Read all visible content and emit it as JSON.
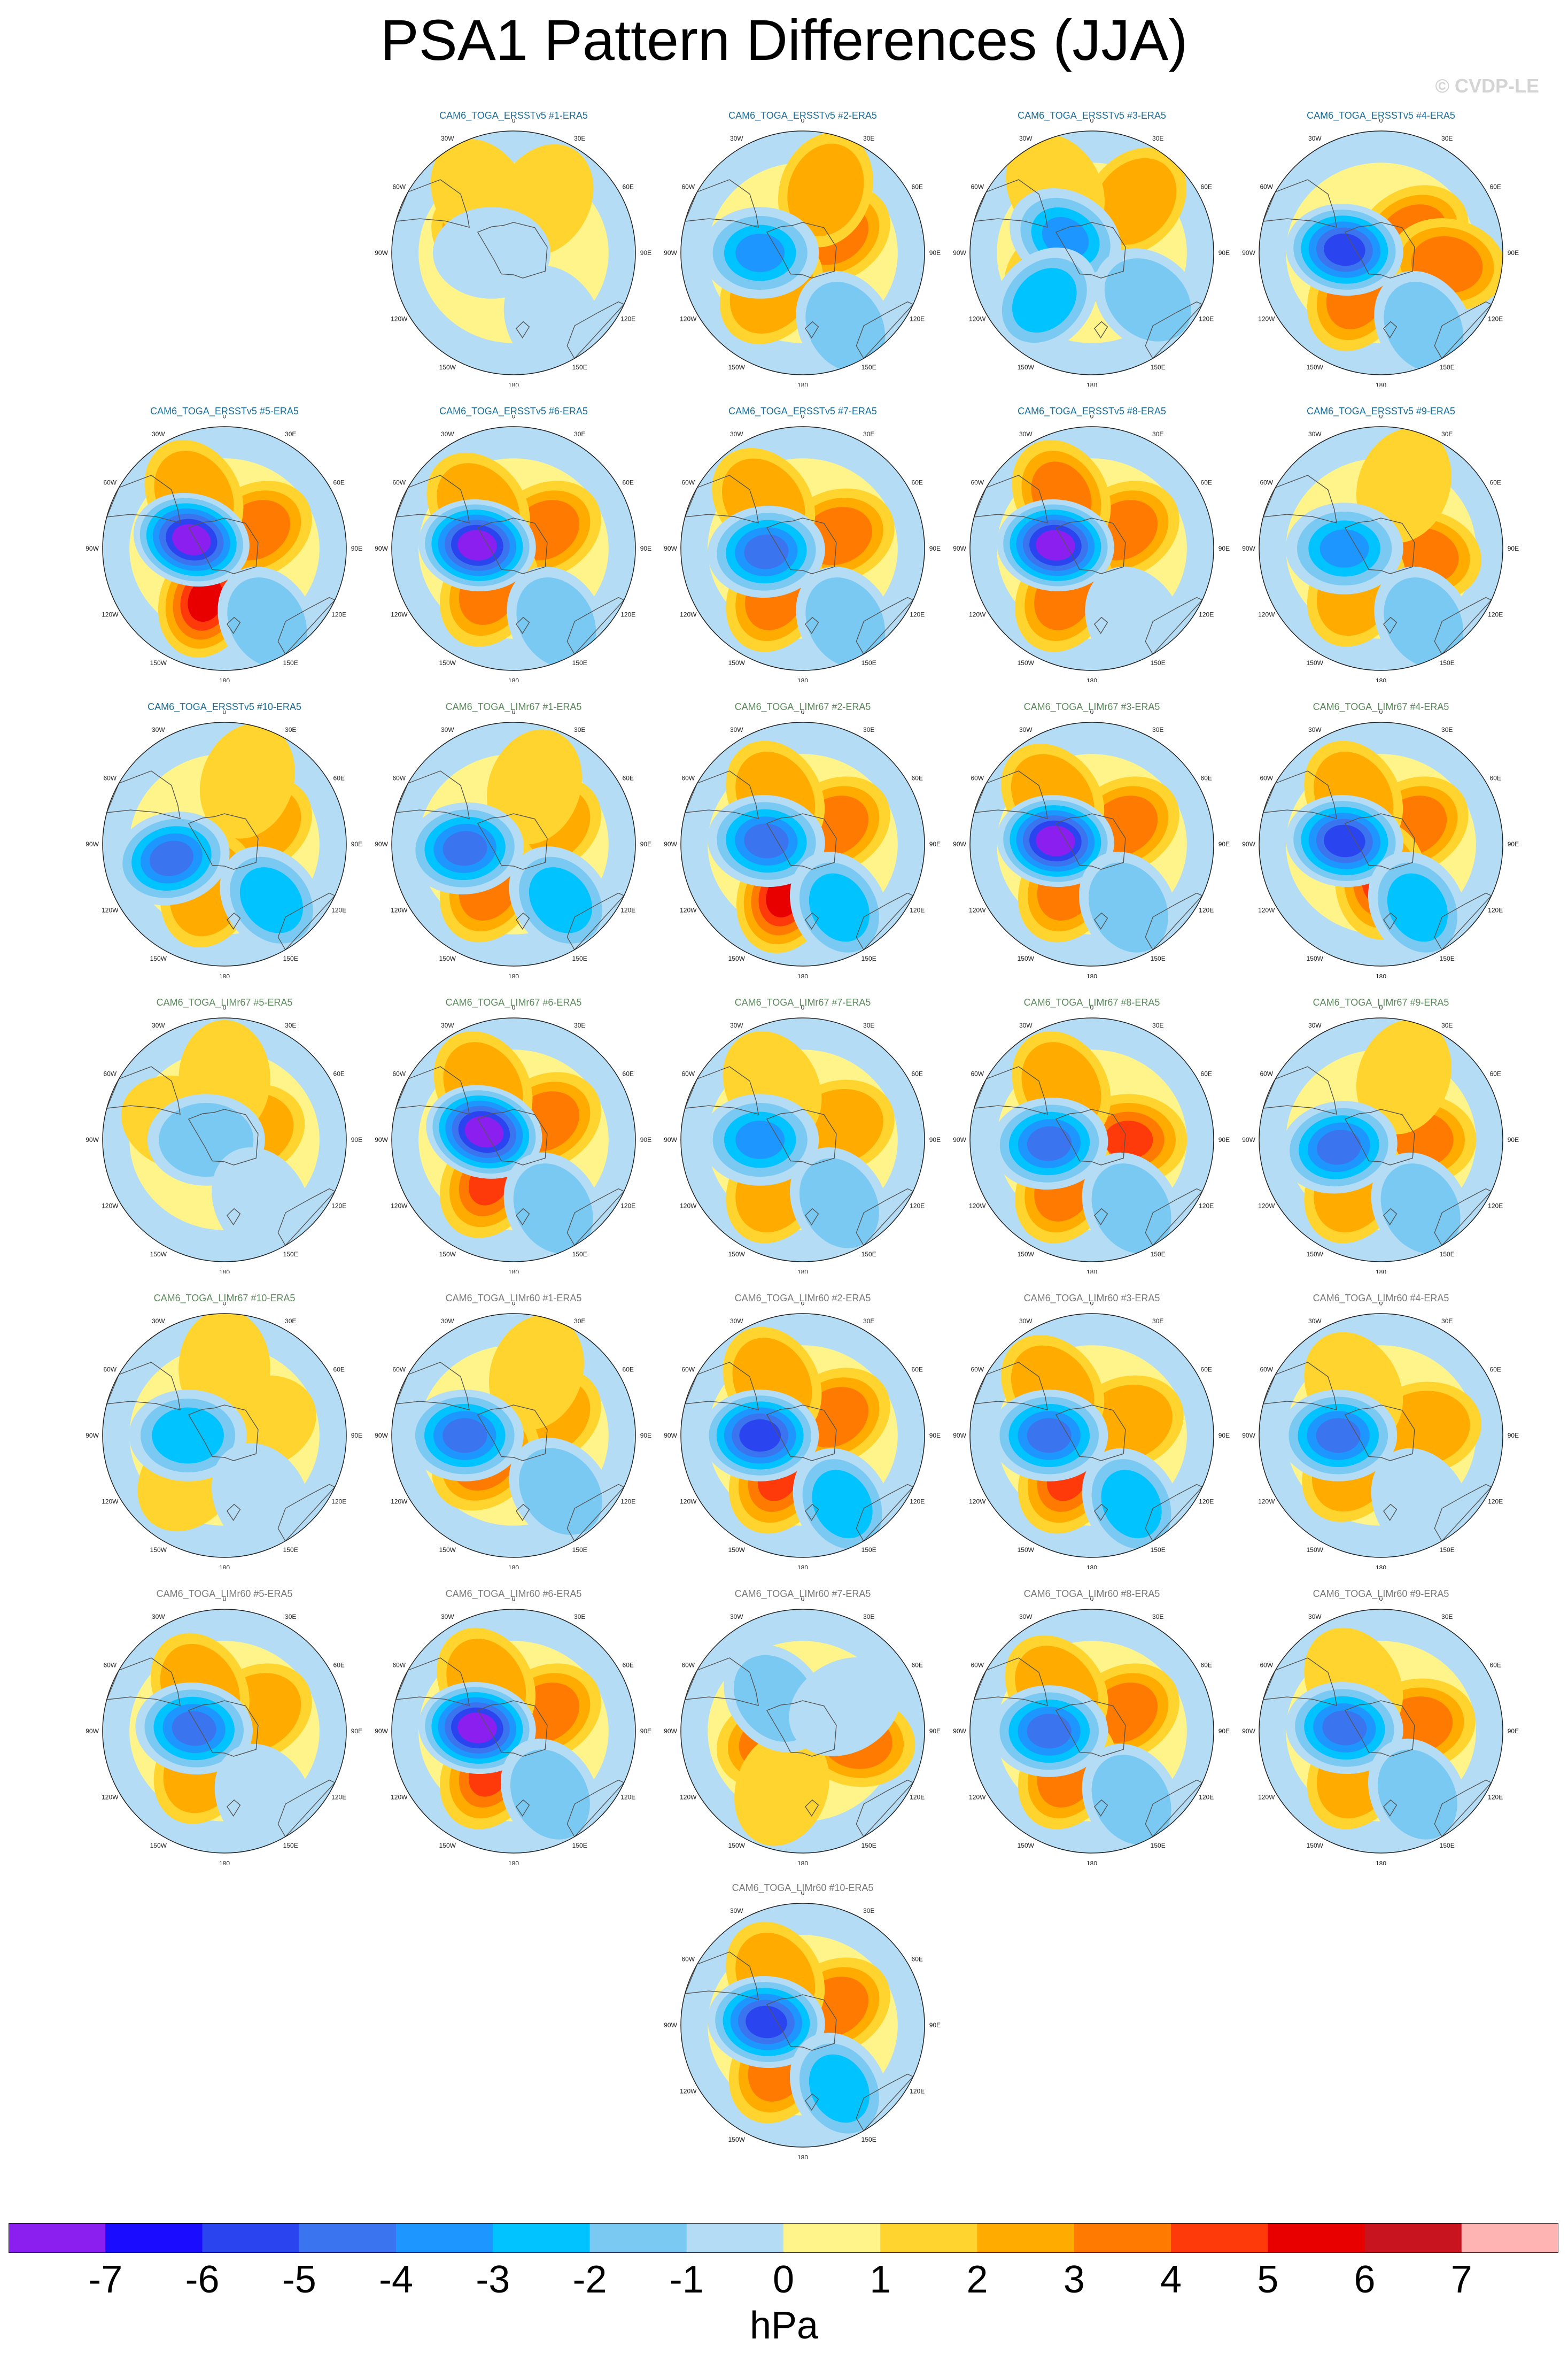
{
  "title": "PSA1 Pattern Differences (JJA)",
  "watermark": "© CVDP-LE",
  "units": "hPa",
  "lon_labels": [
    "0",
    "30E",
    "60E",
    "90E",
    "120E",
    "150E",
    "180",
    "150W",
    "120W",
    "90W",
    "60W",
    "30W"
  ],
  "colorbar": {
    "tick_labels": [
      "-7",
      "-6",
      "-5",
      "-4",
      "-3",
      "-2",
      "-1",
      "0",
      "1",
      "2",
      "3",
      "4",
      "5",
      "6",
      "7"
    ],
    "colors": [
      "#8a1ff0",
      "#1a0dff",
      "#2a44f0",
      "#3a74ee",
      "#1e96ff",
      "#00c3ff",
      "#7ac9f2",
      "#b4dcf4",
      "#fff48a",
      "#ffd42e",
      "#ffab00",
      "#ff7a00",
      "#ff3a0a",
      "#e80000",
      "#c8141e",
      "#ffb4b4"
    ]
  },
  "map_palette": {
    "ocean_positive": "#fff48a",
    "ocean_negative": "#b4dcf4",
    "coast": "#555555"
  },
  "panels": [
    {
      "title": "CAM6_TOGA_ERSSTv5 #1-ERA5",
      "group": "ersst",
      "lows": [
        {
          "ang": 270,
          "r": 0.18,
          "v": 1
        },
        {
          "ang": 150,
          "r": 0.65,
          "v": 1
        }
      ],
      "highs": [
        {
          "ang": 300,
          "r": 0.25,
          "v": 2
        },
        {
          "ang": 330,
          "r": 0.55,
          "v": 1
        },
        {
          "ang": 30,
          "r": 0.5,
          "v": 1
        }
      ]
    },
    {
      "title": "CAM6_TOGA_ERSSTv5 #2-ERA5",
      "group": "ersst",
      "lows": [
        {
          "ang": 270,
          "r": 0.35,
          "v": 4
        },
        {
          "ang": 150,
          "r": 0.7,
          "v": 2
        }
      ],
      "highs": [
        {
          "ang": 60,
          "r": 0.3,
          "v": 3
        },
        {
          "ang": 220,
          "r": 0.4,
          "v": 2
        },
        {
          "ang": 20,
          "r": 0.55,
          "v": 2
        }
      ]
    },
    {
      "title": "CAM6_TOGA_ERSSTv5 #3-ERA5",
      "group": "ersst",
      "lows": [
        {
          "ang": 300,
          "r": 0.25,
          "v": 4
        },
        {
          "ang": 225,
          "r": 0.55,
          "v": 3
        },
        {
          "ang": 130,
          "r": 0.6,
          "v": 2
        }
      ],
      "highs": [
        {
          "ang": 240,
          "r": 0.3,
          "v": 3
        },
        {
          "ang": 40,
          "r": 0.55,
          "v": 2
        },
        {
          "ang": 330,
          "r": 0.6,
          "v": 1
        }
      ]
    },
    {
      "title": "CAM6_TOGA_ERSSTv5 #4-ERA5",
      "group": "ersst",
      "lows": [
        {
          "ang": 275,
          "r": 0.3,
          "v": 6
        },
        {
          "ang": 150,
          "r": 0.7,
          "v": 2
        }
      ],
      "highs": [
        {
          "ang": 60,
          "r": 0.3,
          "v": 3
        },
        {
          "ang": 210,
          "r": 0.4,
          "v": 3
        },
        {
          "ang": 100,
          "r": 0.55,
          "v": 3
        }
      ]
    },
    {
      "title": "CAM6_TOGA_ERSSTv5 #5-ERA5",
      "group": "ersst",
      "lows": [
        {
          "ang": 285,
          "r": 0.28,
          "v": 7
        },
        {
          "ang": 150,
          "r": 0.7,
          "v": 2
        }
      ],
      "highs": [
        {
          "ang": 200,
          "r": 0.45,
          "v": 5
        },
        {
          "ang": 60,
          "r": 0.3,
          "v": 3
        },
        {
          "ang": 330,
          "r": 0.5,
          "v": 2
        }
      ]
    },
    {
      "title": "CAM6_TOGA_ERSSTv5 #6-ERA5",
      "group": "ersst",
      "lows": [
        {
          "ang": 275,
          "r": 0.3,
          "v": 7
        },
        {
          "ang": 150,
          "r": 0.7,
          "v": 2
        }
      ],
      "highs": [
        {
          "ang": 60,
          "r": 0.3,
          "v": 3
        },
        {
          "ang": 210,
          "r": 0.4,
          "v": 3
        },
        {
          "ang": 320,
          "r": 0.45,
          "v": 2
        }
      ]
    },
    {
      "title": "CAM6_TOGA_ERSSTv5 #7-ERA5",
      "group": "ersst",
      "lows": [
        {
          "ang": 265,
          "r": 0.3,
          "v": 5
        },
        {
          "ang": 150,
          "r": 0.7,
          "v": 2
        }
      ],
      "highs": [
        {
          "ang": 70,
          "r": 0.3,
          "v": 3
        },
        {
          "ang": 210,
          "r": 0.45,
          "v": 3
        },
        {
          "ang": 320,
          "r": 0.5,
          "v": 2
        }
      ]
    },
    {
      "title": "CAM6_TOGA_ERSSTv5 #8-ERA5",
      "group": "ersst",
      "lows": [
        {
          "ang": 275,
          "r": 0.3,
          "v": 7
        },
        {
          "ang": 150,
          "r": 0.7,
          "v": 1
        }
      ],
      "highs": [
        {
          "ang": 60,
          "r": 0.3,
          "v": 3
        },
        {
          "ang": 210,
          "r": 0.45,
          "v": 3
        },
        {
          "ang": 330,
          "r": 0.5,
          "v": 3
        }
      ]
    },
    {
      "title": "CAM6_TOGA_ERSSTv5 #9-ERA5",
      "group": "ersst",
      "lows": [
        {
          "ang": 270,
          "r": 0.3,
          "v": 4
        },
        {
          "ang": 150,
          "r": 0.7,
          "v": 2
        }
      ],
      "highs": [
        {
          "ang": 100,
          "r": 0.35,
          "v": 3
        },
        {
          "ang": 210,
          "r": 0.4,
          "v": 2
        },
        {
          "ang": 20,
          "r": 0.55,
          "v": 1
        }
      ]
    },
    {
      "title": "CAM6_TOGA_ERSSTv5 #10-ERA5",
      "group": "ersst",
      "lows": [
        {
          "ang": 255,
          "r": 0.45,
          "v": 5
        },
        {
          "ang": 140,
          "r": 0.6,
          "v": 3
        }
      ],
      "highs": [
        {
          "ang": 60,
          "r": 0.3,
          "v": 2
        },
        {
          "ang": 200,
          "r": 0.4,
          "v": 2
        },
        {
          "ang": 20,
          "r": 0.55,
          "v": 1
        }
      ]
    },
    {
      "title": "CAM6_TOGA_LIMr67 #1-ERA5",
      "group": "lim67",
      "lows": [
        {
          "ang": 265,
          "r": 0.4,
          "v": 5
        },
        {
          "ang": 140,
          "r": 0.6,
          "v": 3
        }
      ],
      "highs": [
        {
          "ang": 60,
          "r": 0.3,
          "v": 2
        },
        {
          "ang": 210,
          "r": 0.4,
          "v": 3
        },
        {
          "ang": 20,
          "r": 0.5,
          "v": 1
        }
      ]
    },
    {
      "title": "CAM6_TOGA_LIMr67 #2-ERA5",
      "group": "lim67",
      "lows": [
        {
          "ang": 275,
          "r": 0.3,
          "v": 5
        },
        {
          "ang": 150,
          "r": 0.6,
          "v": 3
        }
      ],
      "highs": [
        {
          "ang": 200,
          "r": 0.45,
          "v": 5
        },
        {
          "ang": 60,
          "r": 0.3,
          "v": 3
        },
        {
          "ang": 330,
          "r": 0.45,
          "v": 2
        }
      ]
    },
    {
      "title": "CAM6_TOGA_LIMr67 #3-ERA5",
      "group": "lim67",
      "lows": [
        {
          "ang": 275,
          "r": 0.3,
          "v": 7
        },
        {
          "ang": 150,
          "r": 0.6,
          "v": 2
        }
      ],
      "highs": [
        {
          "ang": 60,
          "r": 0.3,
          "v": 3
        },
        {
          "ang": 210,
          "r": 0.4,
          "v": 3
        },
        {
          "ang": 320,
          "r": 0.5,
          "v": 2
        }
      ]
    },
    {
      "title": "CAM6_TOGA_LIMr67 #4-ERA5",
      "group": "lim67",
      "lows": [
        {
          "ang": 275,
          "r": 0.3,
          "v": 6
        },
        {
          "ang": 150,
          "r": 0.6,
          "v": 3
        }
      ],
      "highs": [
        {
          "ang": 60,
          "r": 0.3,
          "v": 3
        },
        {
          "ang": 180,
          "r": 0.3,
          "v": 4
        },
        {
          "ang": 330,
          "r": 0.45,
          "v": 2
        }
      ]
    },
    {
      "title": "CAM6_TOGA_LIMr67 #5-ERA5",
      "group": "lim67",
      "lows": [
        {
          "ang": 270,
          "r": 0.15,
          "v": 2
        },
        {
          "ang": 150,
          "r": 0.6,
          "v": 1
        }
      ],
      "highs": [
        {
          "ang": 70,
          "r": 0.2,
          "v": 2
        },
        {
          "ang": 290,
          "r": 0.4,
          "v": 1
        },
        {
          "ang": 0,
          "r": 0.5,
          "v": 1
        }
      ]
    },
    {
      "title": "CAM6_TOGA_LIMr67 #6-ERA5",
      "group": "lim67",
      "lows": [
        {
          "ang": 285,
          "r": 0.25,
          "v": 7
        },
        {
          "ang": 150,
          "r": 0.65,
          "v": 2
        }
      ],
      "highs": [
        {
          "ang": 210,
          "r": 0.4,
          "v": 4
        },
        {
          "ang": 60,
          "r": 0.3,
          "v": 3
        },
        {
          "ang": 330,
          "r": 0.5,
          "v": 2
        }
      ]
    },
    {
      "title": "CAM6_TOGA_LIMr67 #7-ERA5",
      "group": "lim67",
      "lows": [
        {
          "ang": 270,
          "r": 0.35,
          "v": 4
        },
        {
          "ang": 150,
          "r": 0.6,
          "v": 2
        }
      ],
      "highs": [
        {
          "ang": 70,
          "r": 0.3,
          "v": 2
        },
        {
          "ang": 210,
          "r": 0.45,
          "v": 2
        },
        {
          "ang": 330,
          "r": 0.5,
          "v": 1
        }
      ]
    },
    {
      "title": "CAM6_TOGA_LIMr67 #8-ERA5",
      "group": "lim67",
      "lows": [
        {
          "ang": 265,
          "r": 0.35,
          "v": 5
        },
        {
          "ang": 150,
          "r": 0.65,
          "v": 2
        }
      ],
      "highs": [
        {
          "ang": 90,
          "r": 0.3,
          "v": 4
        },
        {
          "ang": 210,
          "r": 0.45,
          "v": 3
        },
        {
          "ang": 330,
          "r": 0.5,
          "v": 2
        }
      ]
    },
    {
      "title": "CAM6_TOGA_LIMr67 #9-ERA5",
      "group": "lim67",
      "lows": [
        {
          "ang": 260,
          "r": 0.35,
          "v": 5
        },
        {
          "ang": 150,
          "r": 0.65,
          "v": 2
        }
      ],
      "highs": [
        {
          "ang": 90,
          "r": 0.3,
          "v": 3
        },
        {
          "ang": 210,
          "r": 0.45,
          "v": 2
        },
        {
          "ang": 20,
          "r": 0.55,
          "v": 1
        }
      ]
    },
    {
      "title": "CAM6_TOGA_LIMr67 #10-ERA5",
      "group": "lim67",
      "lows": [
        {
          "ang": 270,
          "r": 0.3,
          "v": 3
        },
        {
          "ang": 150,
          "r": 0.6,
          "v": 1
        }
      ],
      "highs": [
        {
          "ang": 70,
          "r": 0.3,
          "v": 1
        },
        {
          "ang": 220,
          "r": 0.45,
          "v": 1
        },
        {
          "ang": 0,
          "r": 0.55,
          "v": 1
        }
      ]
    },
    {
      "title": "CAM6_TOGA_LIMr60 #1-ERA5",
      "group": "lim60",
      "lows": [
        {
          "ang": 270,
          "r": 0.4,
          "v": 5
        },
        {
          "ang": 140,
          "r": 0.6,
          "v": 2
        }
      ],
      "highs": [
        {
          "ang": 60,
          "r": 0.3,
          "v": 2
        },
        {
          "ang": 230,
          "r": 0.3,
          "v": 3
        },
        {
          "ang": 20,
          "r": 0.55,
          "v": 1
        }
      ]
    },
    {
      "title": "CAM6_TOGA_LIMr60 #2-ERA5",
      "group": "lim60",
      "lows": [
        {
          "ang": 270,
          "r": 0.35,
          "v": 6
        },
        {
          "ang": 150,
          "r": 0.65,
          "v": 3
        }
      ],
      "highs": [
        {
          "ang": 210,
          "r": 0.4,
          "v": 4
        },
        {
          "ang": 60,
          "r": 0.3,
          "v": 3
        },
        {
          "ang": 330,
          "r": 0.5,
          "v": 2
        }
      ]
    },
    {
      "title": "CAM6_TOGA_LIMr60 #3-ERA5",
      "group": "lim60",
      "lows": [
        {
          "ang": 270,
          "r": 0.35,
          "v": 5
        },
        {
          "ang": 150,
          "r": 0.65,
          "v": 3
        }
      ],
      "highs": [
        {
          "ang": 210,
          "r": 0.4,
          "v": 4
        },
        {
          "ang": 70,
          "r": 0.3,
          "v": 2
        },
        {
          "ang": 320,
          "r": 0.5,
          "v": 2
        }
      ]
    },
    {
      "title": "CAM6_TOGA_LIMr60 #4-ERA5",
      "group": "lim60",
      "lows": [
        {
          "ang": 270,
          "r": 0.35,
          "v": 5
        },
        {
          "ang": 150,
          "r": 0.65,
          "v": 1
        }
      ],
      "highs": [
        {
          "ang": 220,
          "r": 0.35,
          "v": 2
        },
        {
          "ang": 80,
          "r": 0.35,
          "v": 2
        },
        {
          "ang": 330,
          "r": 0.45,
          "v": 1
        }
      ]
    },
    {
      "title": "CAM6_TOGA_LIMr60 #5-ERA5",
      "group": "lim60",
      "lows": [
        {
          "ang": 275,
          "r": 0.25,
          "v": 5
        },
        {
          "ang": 150,
          "r": 0.65,
          "v": 1
        }
      ],
      "highs": [
        {
          "ang": 60,
          "r": 0.3,
          "v": 2
        },
        {
          "ang": 210,
          "r": 0.35,
          "v": 2
        },
        {
          "ang": 330,
          "r": 0.4,
          "v": 2
        }
      ]
    },
    {
      "title": "CAM6_TOGA_LIMr60 #6-ERA5",
      "group": "lim60",
      "lows": [
        {
          "ang": 275,
          "r": 0.3,
          "v": 7
        },
        {
          "ang": 150,
          "r": 0.6,
          "v": 2
        }
      ],
      "highs": [
        {
          "ang": 210,
          "r": 0.4,
          "v": 4
        },
        {
          "ang": 60,
          "r": 0.3,
          "v": 3
        },
        {
          "ang": 330,
          "r": 0.45,
          "v": 2
        }
      ]
    },
    {
      "title": "CAM6_TOGA_LIMr60 #7-ERA5",
      "group": "lim60",
      "lows": [
        {
          "ang": 320,
          "r": 0.35,
          "v": 2
        },
        {
          "ang": 60,
          "r": 0.4,
          "v": 1
        }
      ],
      "highs": [
        {
          "ang": 250,
          "r": 0.25,
          "v": 3
        },
        {
          "ang": 100,
          "r": 0.45,
          "v": 3
        },
        {
          "ang": 200,
          "r": 0.5,
          "v": 1
        }
      ]
    },
    {
      "title": "CAM6_TOGA_LIMr60 #8-ERA5",
      "group": "lim60",
      "lows": [
        {
          "ang": 270,
          "r": 0.35,
          "v": 5
        },
        {
          "ang": 150,
          "r": 0.65,
          "v": 2
        }
      ],
      "highs": [
        {
          "ang": 60,
          "r": 0.3,
          "v": 3
        },
        {
          "ang": 210,
          "r": 0.4,
          "v": 3
        },
        {
          "ang": 320,
          "r": 0.45,
          "v": 2
        }
      ]
    },
    {
      "title": "CAM6_TOGA_LIMr60 #9-ERA5",
      "group": "lim60",
      "lows": [
        {
          "ang": 275,
          "r": 0.3,
          "v": 5
        },
        {
          "ang": 150,
          "r": 0.6,
          "v": 2
        }
      ],
      "highs": [
        {
          "ang": 80,
          "r": 0.3,
          "v": 3
        },
        {
          "ang": 210,
          "r": 0.4,
          "v": 2
        },
        {
          "ang": 330,
          "r": 0.45,
          "v": 1
        }
      ]
    },
    {
      "title": "CAM6_TOGA_LIMr60 #10-ERA5",
      "group": "lim60",
      "lows": [
        {
          "ang": 275,
          "r": 0.3,
          "v": 6
        },
        {
          "ang": 150,
          "r": 0.6,
          "v": 3
        }
      ],
      "highs": [
        {
          "ang": 60,
          "r": 0.3,
          "v": 3
        },
        {
          "ang": 210,
          "r": 0.4,
          "v": 3
        },
        {
          "ang": 330,
          "r": 0.45,
          "v": 2
        }
      ]
    }
  ]
}
